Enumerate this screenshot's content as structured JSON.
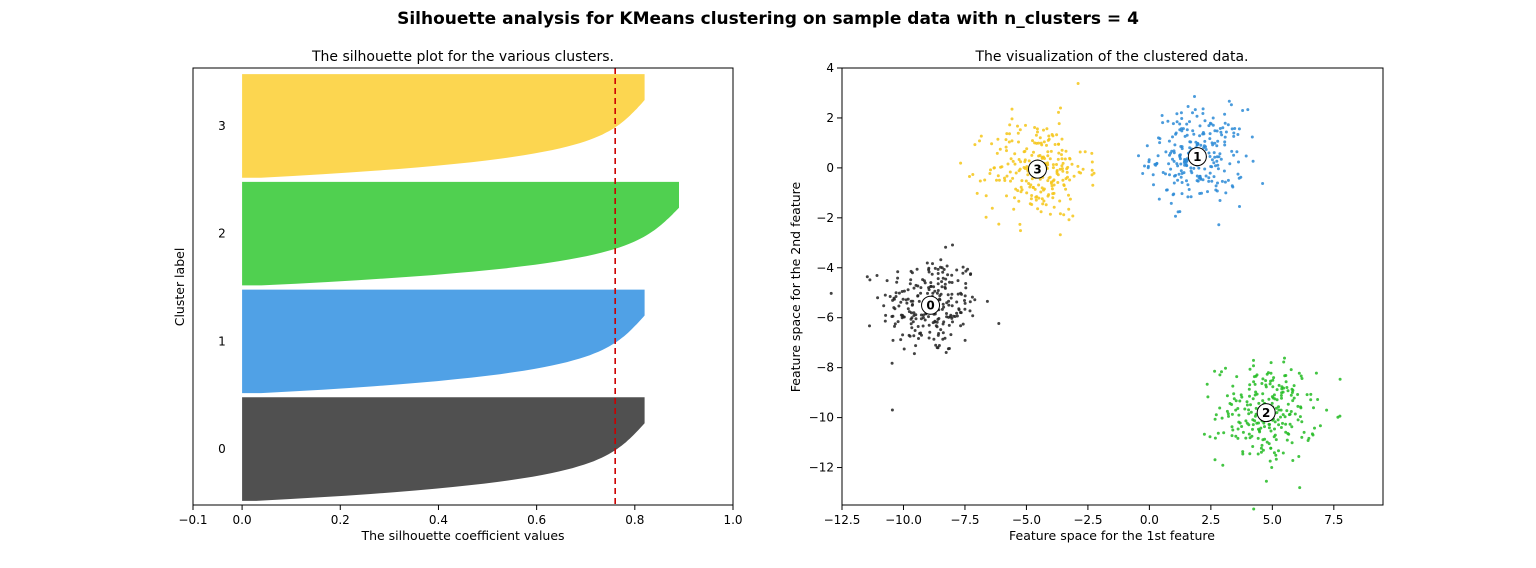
{
  "suptitle": "Silhouette analysis for KMeans clustering on sample data with n_clusters = 4",
  "chart_data": [
    {
      "type": "area",
      "title": "The silhouette plot for the various clusters.",
      "xlabel": "The silhouette coefficient values",
      "ylabel": "Cluster label",
      "xlim": [
        -0.1,
        1.0
      ],
      "xticks": [
        "−0.1",
        "0.0",
        "0.2",
        "0.4",
        "0.6",
        "0.8",
        "1.0"
      ],
      "xtick_values": [
        -0.1,
        0.0,
        0.2,
        0.4,
        0.6,
        0.8,
        1.0
      ],
      "average_silhouette_score": 0.76,
      "average_line_color": "#cc0000",
      "clusters": [
        {
          "label": "0",
          "color": "#4c4c4c",
          "size": 250,
          "max": 0.82,
          "min": 0.02
        },
        {
          "label": "1",
          "color": "#4c9fe5",
          "size": 250,
          "max": 0.82,
          "min": 0.03
        },
        {
          "label": "2",
          "color": "#4ccf4c",
          "size": 250,
          "max": 0.89,
          "min": 0.03
        },
        {
          "label": "3",
          "color": "#fcd54c",
          "size": 250,
          "max": 0.82,
          "min": 0.03
        }
      ],
      "grid": false
    },
    {
      "type": "scatter",
      "title": "The visualization of the clustered data.",
      "xlabel": "Feature space for the 1st feature",
      "ylabel": "Feature space for the 2nd feature",
      "xlim": [
        -12.5,
        9.5
      ],
      "ylim": [
        -13.5,
        4.0
      ],
      "xticks": [
        "−12.5",
        "−10.0",
        "−7.5",
        "−5.0",
        "−2.5",
        "0.0",
        "2.5",
        "5.0",
        "7.5"
      ],
      "xtick_values": [
        -12.5,
        -10.0,
        -7.5,
        -5.0,
        -2.5,
        0.0,
        2.5,
        5.0,
        7.5
      ],
      "yticks": [
        "4",
        "2",
        "0",
        "−2",
        "−4",
        "−6",
        "−8",
        "−10",
        "−12"
      ],
      "ytick_values": [
        4,
        2,
        0,
        -2,
        -4,
        -6,
        -8,
        -10,
        -12
      ],
      "clusters": [
        {
          "label": "0",
          "color": "#222222",
          "center": [
            -8.9,
            -5.5
          ],
          "spread": 1.0,
          "n": 250
        },
        {
          "label": "1",
          "color": "#2a8ad6",
          "center": [
            1.95,
            0.45
          ],
          "spread": 0.95,
          "n": 250
        },
        {
          "label": "2",
          "color": "#22bb22",
          "center": [
            4.75,
            -9.8
          ],
          "spread": 1.0,
          "n": 250
        },
        {
          "label": "3",
          "color": "#f5c518",
          "center": [
            -4.55,
            -0.05
          ],
          "spread": 1.0,
          "n": 250
        }
      ],
      "grid": false
    }
  ]
}
